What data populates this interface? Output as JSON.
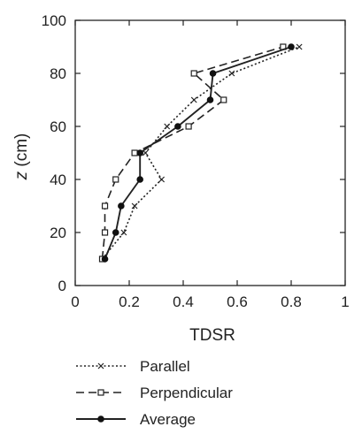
{
  "chart_data": {
    "type": "line",
    "xlabel": "TDSR",
    "ylabel_italic": "z",
    "ylabel_suffix": " (cm)",
    "xlim": [
      0,
      1
    ],
    "ylim": [
      0,
      100
    ],
    "xticks": [
      0,
      0.2,
      0.4,
      0.6,
      0.8,
      1
    ],
    "xtick_labels": [
      "0",
      "0.2",
      "0.4",
      "0.6",
      "0.8",
      "1"
    ],
    "yticks": [
      0,
      20,
      40,
      60,
      80,
      100
    ],
    "ytick_labels": [
      "0",
      "20",
      "40",
      "60",
      "80",
      "100"
    ],
    "legend_position": "below",
    "series": [
      {
        "name": "Parallel",
        "style": "dotted",
        "marker": "x",
        "points": [
          [
            0.1,
            10
          ],
          [
            0.18,
            20
          ],
          [
            0.22,
            30
          ],
          [
            0.32,
            40
          ],
          [
            0.26,
            50
          ],
          [
            0.34,
            60
          ],
          [
            0.44,
            70
          ],
          [
            0.58,
            80
          ],
          [
            0.83,
            90
          ]
        ]
      },
      {
        "name": "Perpendicular",
        "style": "dashed",
        "marker": "square",
        "points": [
          [
            0.1,
            10
          ],
          [
            0.11,
            20
          ],
          [
            0.11,
            30
          ],
          [
            0.15,
            40
          ],
          [
            0.22,
            50
          ],
          [
            0.42,
            60
          ],
          [
            0.55,
            70
          ],
          [
            0.44,
            80
          ],
          [
            0.77,
            90
          ]
        ]
      },
      {
        "name": "Average",
        "style": "solid",
        "marker": "dot",
        "points": [
          [
            0.11,
            10
          ],
          [
            0.15,
            20
          ],
          [
            0.17,
            30
          ],
          [
            0.24,
            40
          ],
          [
            0.24,
            50
          ],
          [
            0.38,
            60
          ],
          [
            0.5,
            70
          ],
          [
            0.51,
            80
          ],
          [
            0.8,
            90
          ]
        ]
      }
    ]
  }
}
